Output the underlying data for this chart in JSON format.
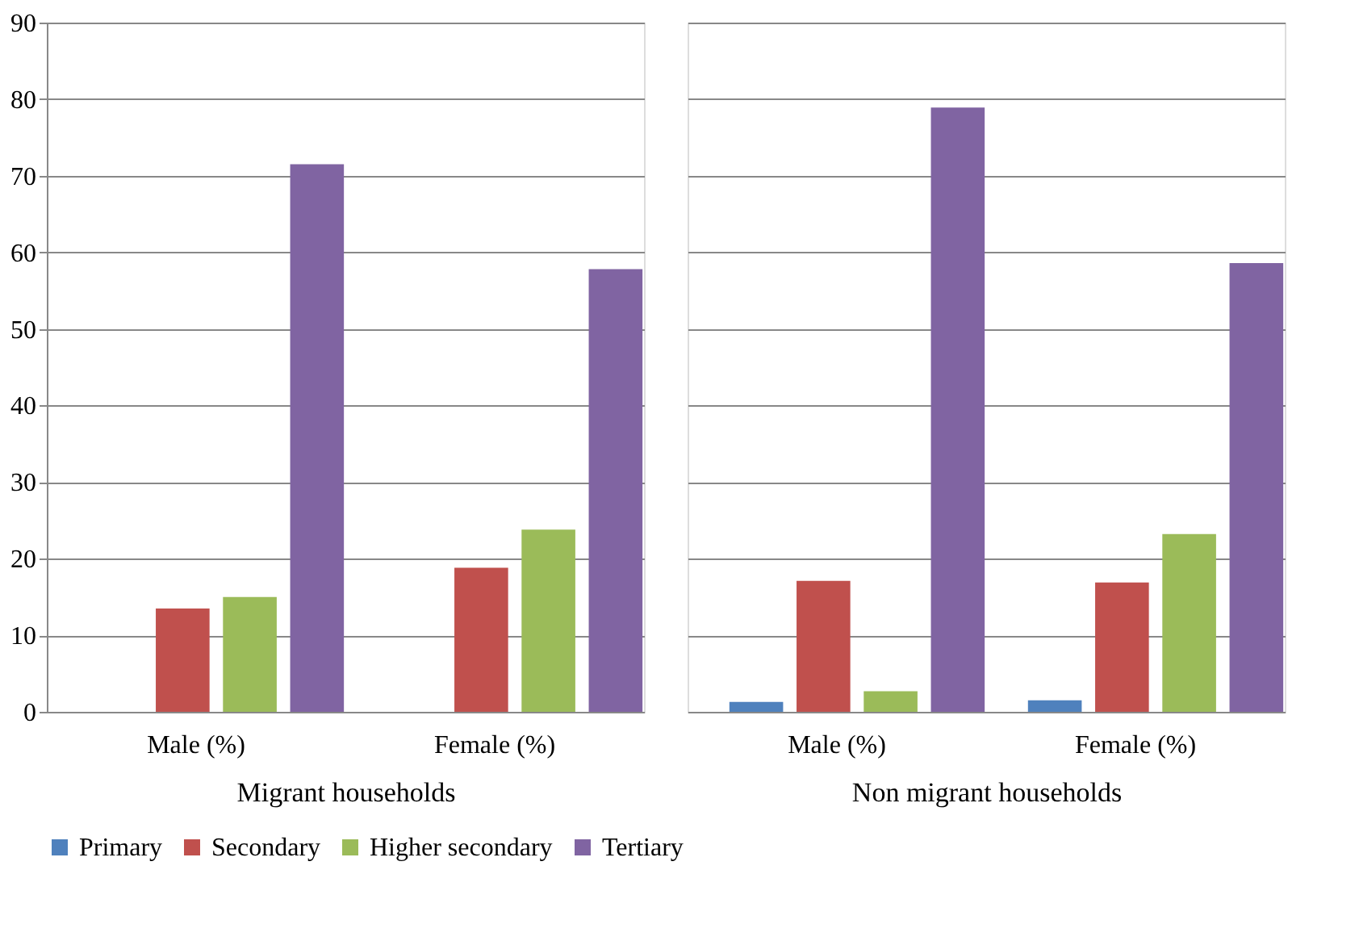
{
  "chart_data": [
    {
      "type": "bar",
      "xlabel": "Migrant households",
      "categories": [
        "Male (%)",
        "Female (%)"
      ],
      "series": [
        {
          "name": "Primary",
          "color": "#4f81bd",
          "values": [
            0,
            0
          ]
        },
        {
          "name": "Secondary",
          "color": "#c0504d",
          "values": [
            13.5,
            18.8
          ]
        },
        {
          "name": "Higher secondary",
          "color": "#9bbb59",
          "values": [
            15.0,
            23.8
          ]
        },
        {
          "name": "Tertiary",
          "color": "#8064a2",
          "values": [
            71.5,
            57.8
          ]
        }
      ],
      "ylim": [
        0,
        90
      ],
      "yticks": [
        0,
        10,
        20,
        30,
        40,
        50,
        60,
        70,
        80,
        90
      ],
      "grid": "y",
      "legend": "bottom"
    },
    {
      "type": "bar",
      "xlabel": "Non migrant households",
      "categories": [
        "Male (%)",
        "Female (%)"
      ],
      "series": [
        {
          "color": "#4f81bd",
          "values": [
            1.3,
            1.5
          ]
        },
        {
          "color": "#c0504d",
          "values": [
            17.1,
            16.9
          ]
        },
        {
          "color": "#9bbb59",
          "values": [
            2.7,
            23.2
          ]
        },
        {
          "color": "#8064a2",
          "values": [
            78.9,
            58.6
          ]
        }
      ],
      "ylim": [
        0,
        90
      ],
      "yticks": [
        0,
        10,
        20,
        30,
        40,
        50,
        60,
        70,
        80,
        90
      ],
      "grid": "y",
      "tick_labels": "x"
    }
  ]
}
